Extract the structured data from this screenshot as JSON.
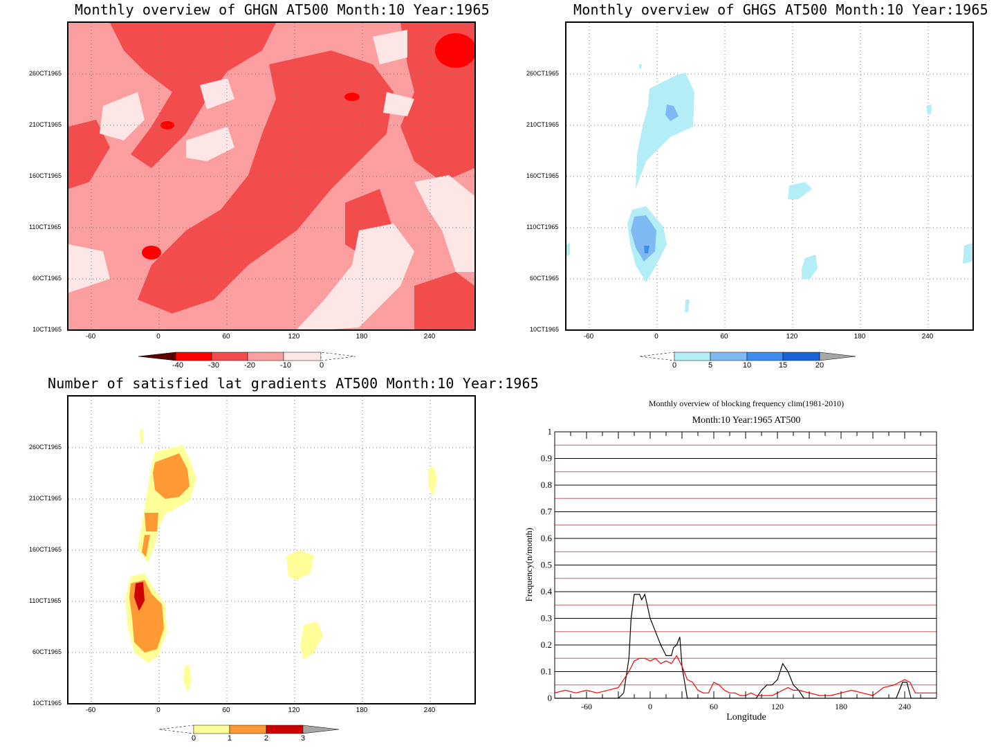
{
  "panels": {
    "ghgn": {
      "title": "Monthly overview of GHGN AT500 Month:10 Year:1965",
      "yticks": [
        "260CT1965",
        "210CT1965",
        "160CT1965",
        "110CT1965",
        "60CT1965",
        "10CT1965"
      ],
      "xticks": [
        "-60",
        "0",
        "60",
        "120",
        "180",
        "240"
      ],
      "colorbar": [
        "-40",
        "-30",
        "-20",
        "-10",
        "0"
      ],
      "colors": [
        "#5a0000",
        "#ff0000",
        "#f24c4c",
        "#fa9ea0",
        "#fde6e6"
      ]
    },
    "ghgs": {
      "title": "Monthly overview of GHGS AT500 Month:10 Year:1965",
      "yticks": [
        "260CT1965",
        "210CT1965",
        "160CT1965",
        "110CT1965",
        "60CT1965",
        "10CT1965"
      ],
      "xticks": [
        "-60",
        "0",
        "60",
        "120",
        "180",
        "240"
      ],
      "colorbar": [
        "0",
        "5",
        "10",
        "15",
        "20"
      ],
      "colors": [
        "#b3eef6",
        "#7eb9f3",
        "#3d8cf0",
        "#1863d6",
        "#a6a6a6"
      ]
    },
    "grad": {
      "title": "Number of satisfied lat gradients AT500 Month:10 Year:1965",
      "yticks": [
        "260CT1965",
        "210CT1965",
        "160CT1965",
        "110CT1965",
        "60CT1965",
        "10CT1965"
      ],
      "xticks": [
        "-60",
        "0",
        "60",
        "120",
        "180",
        "240"
      ],
      "colorbar": [
        "0",
        "1",
        "2",
        "3"
      ],
      "colors": [
        "#ffff99",
        "#ff9933",
        "#cc0000",
        "#a6a6a6"
      ]
    }
  },
  "chart_data": {
    "type": "line",
    "title": "Monthly overview of blocking frequency clim(1981-2010)",
    "subtitle": "Month:10 Year:1965  AT500",
    "xlabel": "Longitude",
    "ylabel": "Frequency(n/month)",
    "xlim": [
      -90,
      270
    ],
    "ylim": [
      0,
      1
    ],
    "xticks": [
      "-60",
      "0",
      "60",
      "120",
      "180",
      "240"
    ],
    "yticks": [
      "0",
      "0.1",
      "0.2",
      "0.3",
      "0.4",
      "0.5",
      "0.6",
      "0.7",
      "0.8",
      "0.9",
      "1"
    ],
    "series": [
      {
        "color": "#000000",
        "x": [
          -90,
          -60,
          -40,
          -30,
          -25,
          -20,
          -18,
          -15,
          -10,
          -8,
          -5,
          0,
          5,
          10,
          15,
          20,
          22,
          25,
          28,
          30,
          35,
          40,
          100,
          105,
          110,
          115,
          120,
          125,
          130,
          135,
          140,
          145,
          150,
          228,
          232,
          236,
          238,
          240,
          242,
          244,
          246,
          270
        ],
        "y": [
          0,
          0,
          0,
          0,
          0.02,
          0.15,
          0.3,
          0.39,
          0.39,
          0.37,
          0.39,
          0.3,
          0.25,
          0.2,
          0.16,
          0.16,
          0.19,
          0.2,
          0.23,
          0.12,
          0,
          0,
          0,
          0.03,
          0.05,
          0.05,
          0.07,
          0.13,
          0.1,
          0.05,
          0.03,
          0,
          0,
          0,
          0,
          0.04,
          0.06,
          0.06,
          0.06,
          0.03,
          0,
          0
        ]
      },
      {
        "color": "#ff0000",
        "x": [
          -90,
          -80,
          -70,
          -60,
          -50,
          -40,
          -30,
          -25,
          -20,
          -15,
          -10,
          -5,
          0,
          5,
          10,
          15,
          20,
          25,
          30,
          35,
          40,
          45,
          50,
          55,
          60,
          65,
          70,
          75,
          80,
          85,
          90,
          95,
          100,
          105,
          110,
          115,
          120,
          125,
          130,
          135,
          140,
          150,
          160,
          170,
          180,
          190,
          200,
          210,
          220,
          230,
          240,
          245,
          250,
          260,
          270
        ],
        "y": [
          0.02,
          0.03,
          0.02,
          0.03,
          0.02,
          0.03,
          0.04,
          0.07,
          0.1,
          0.14,
          0.15,
          0.15,
          0.14,
          0.15,
          0.13,
          0.14,
          0.13,
          0.16,
          0.12,
          0.07,
          0.06,
          0.03,
          0.02,
          0.02,
          0.06,
          0.05,
          0.03,
          0.02,
          0.02,
          0.01,
          0.01,
          0.02,
          0.01,
          0.01,
          0.01,
          0.01,
          0.02,
          0.03,
          0.04,
          0.03,
          0.03,
          0.02,
          0.01,
          0.01,
          0.02,
          0.03,
          0.02,
          0.01,
          0.04,
          0.05,
          0.07,
          0.06,
          0.02,
          0.02,
          0.02
        ]
      }
    ]
  }
}
